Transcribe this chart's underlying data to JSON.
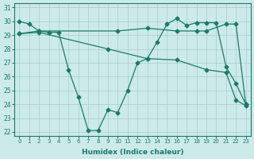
{
  "xlabel": "Humidex (Indice chaleur)",
  "bg_color": "#cceaea",
  "grid_color": "#aacccc",
  "line_color": "#1a7a6a",
  "xlim": [
    -0.5,
    23.5
  ],
  "ylim": [
    21.7,
    31.3
  ],
  "yticks": [
    22,
    23,
    24,
    25,
    26,
    27,
    28,
    29,
    30,
    31
  ],
  "xticks": [
    0,
    1,
    2,
    3,
    4,
    5,
    6,
    7,
    8,
    9,
    10,
    11,
    12,
    13,
    14,
    15,
    16,
    17,
    18,
    19,
    20,
    21,
    22,
    23
  ],
  "series1": {
    "x": [
      0,
      1,
      2,
      3,
      4,
      5,
      6,
      7,
      8,
      9,
      10,
      11,
      12,
      13,
      14,
      15,
      16,
      17,
      18,
      19,
      20,
      21,
      22,
      23
    ],
    "y": [
      30.0,
      29.8,
      29.3,
      29.2,
      29.2,
      26.5,
      24.5,
      22.1,
      22.1,
      23.6,
      23.4,
      25.0,
      27.0,
      27.3,
      28.5,
      29.8,
      30.2,
      29.7,
      29.9,
      29.9,
      29.9,
      26.7,
      25.5,
      24.0
    ]
  },
  "series2": {
    "x": [
      0,
      2,
      10,
      13,
      16,
      18,
      19,
      21,
      22,
      23
    ],
    "y": [
      29.1,
      29.3,
      29.3,
      29.5,
      29.3,
      29.3,
      29.3,
      29.8,
      29.8,
      24.0
    ]
  },
  "series3": {
    "x": [
      0,
      2,
      9,
      13,
      16,
      19,
      21,
      22,
      23
    ],
    "y": [
      29.1,
      29.2,
      28.0,
      27.3,
      27.2,
      26.5,
      26.3,
      24.3,
      23.9
    ]
  }
}
